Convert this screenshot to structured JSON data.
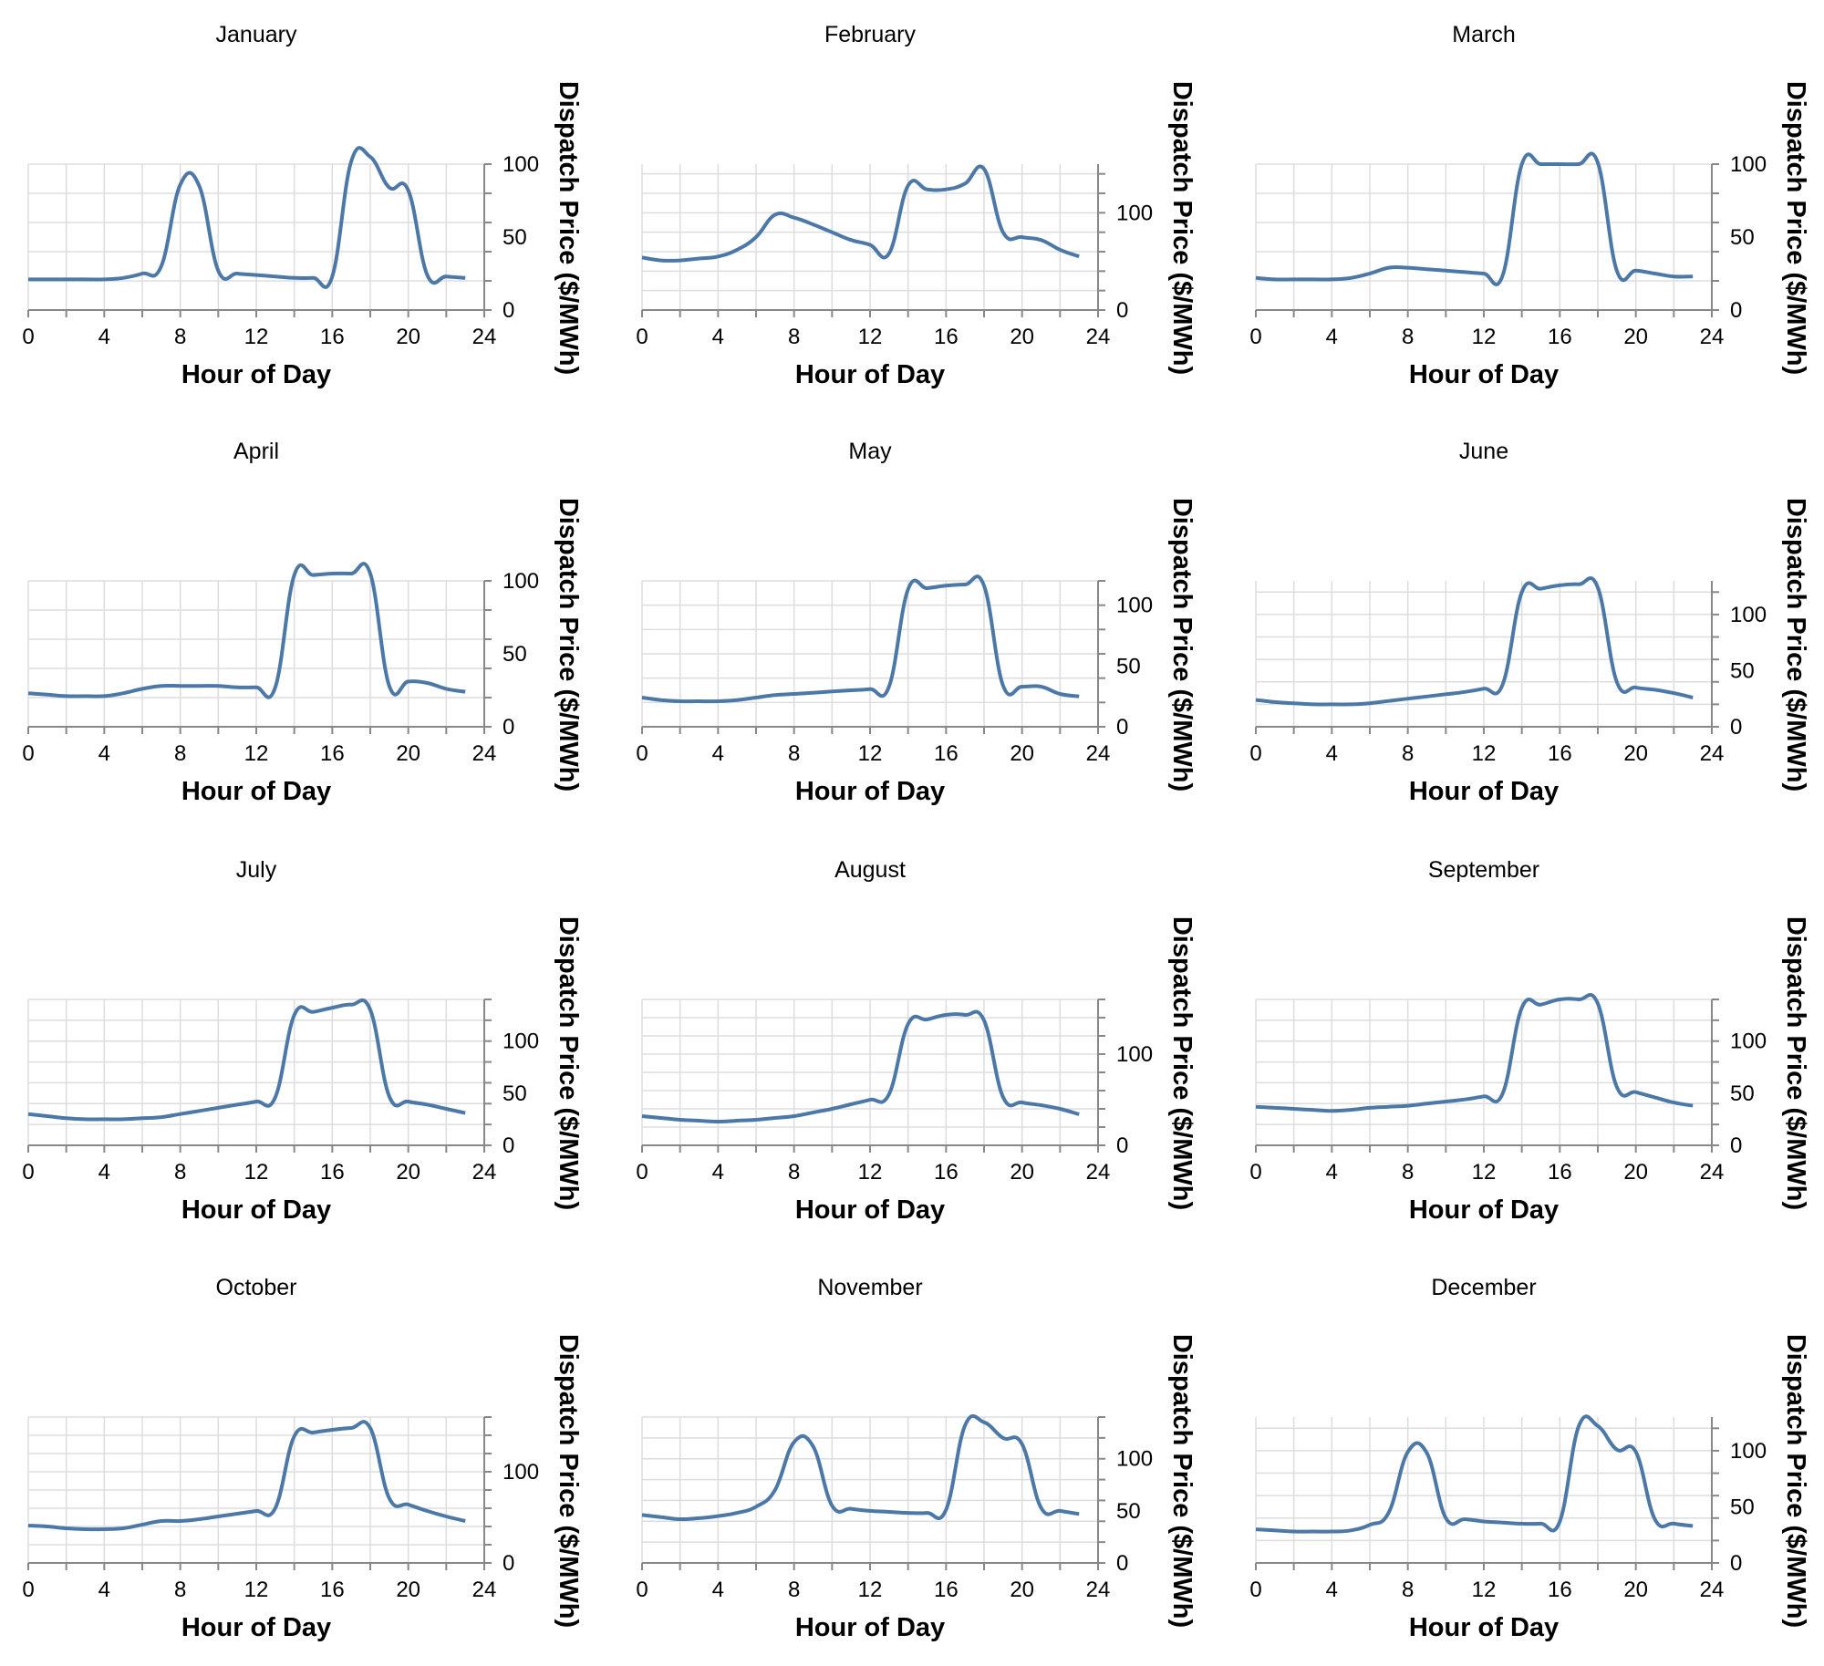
{
  "chart_data": [
    {
      "type": "line",
      "title": "January",
      "xlabel": "Hour of Day",
      "ylabel": "Dispatch Price ($/MWh)",
      "xlim": [
        0,
        24
      ],
      "ylim": [
        0,
        100
      ],
      "y_axis_max": 100,
      "x_ticks": [
        0,
        4,
        8,
        12,
        16,
        20,
        24
      ],
      "y_ticks": [
        0,
        50,
        100
      ],
      "y_axis_position": "right",
      "grid": true,
      "x": [
        0,
        1,
        2,
        3,
        4,
        5,
        6,
        7,
        8,
        9,
        10,
        11,
        12,
        13,
        14,
        15,
        16,
        17,
        18,
        19,
        20,
        21,
        22,
        23
      ],
      "values": [
        21,
        21,
        21,
        21,
        21,
        22,
        25,
        30,
        86,
        85,
        27,
        25,
        24,
        23,
        22,
        22,
        23,
        102,
        105,
        84,
        82,
        24,
        23,
        22
      ]
    },
    {
      "type": "line",
      "title": "February",
      "xlabel": "Hour of Day",
      "ylabel": "Dispatch Price ($/MWh)",
      "xlim": [
        0,
        24
      ],
      "ylim": [
        0,
        150
      ],
      "y_axis_max": 150,
      "x_ticks": [
        0,
        4,
        8,
        12,
        16,
        20,
        24
      ],
      "y_ticks": [
        0,
        100
      ],
      "y_axis_position": "right",
      "grid": true,
      "x": [
        0,
        1,
        2,
        3,
        4,
        5,
        6,
        7,
        8,
        9,
        10,
        11,
        12,
        13,
        14,
        15,
        16,
        17,
        18,
        19,
        20,
        21,
        22,
        23
      ],
      "values": [
        54,
        51,
        51,
        53,
        55,
        62,
        75,
        98,
        95,
        88,
        80,
        72,
        67,
        58,
        128,
        124,
        124,
        130,
        145,
        80,
        75,
        72,
        62,
        55
      ]
    },
    {
      "type": "line",
      "title": "March",
      "xlabel": "Hour of Day",
      "ylabel": "Dispatch Price ($/MWh)",
      "xlim": [
        0,
        24
      ],
      "ylim": [
        0,
        100
      ],
      "y_axis_max": 100,
      "x_ticks": [
        0,
        4,
        8,
        12,
        16,
        20,
        24
      ],
      "y_ticks": [
        0,
        50,
        100
      ],
      "y_axis_position": "right",
      "grid": true,
      "x": [
        0,
        1,
        2,
        3,
        4,
        5,
        6,
        7,
        8,
        9,
        10,
        11,
        12,
        13,
        14,
        15,
        16,
        17,
        18,
        19,
        20,
        21,
        22,
        23
      ],
      "values": [
        22,
        21,
        21,
        21,
        21,
        22,
        25,
        29,
        29,
        28,
        27,
        26,
        25,
        24,
        100,
        100,
        100,
        100,
        101,
        27,
        27,
        25,
        23,
        23
      ]
    },
    {
      "type": "line",
      "title": "April",
      "xlabel": "Hour of Day",
      "ylabel": "Dispatch Price ($/MWh)",
      "xlim": [
        0,
        24
      ],
      "ylim": [
        0,
        100
      ],
      "y_axis_max": 100,
      "x_ticks": [
        0,
        4,
        8,
        12,
        16,
        20,
        24
      ],
      "y_ticks": [
        0,
        50,
        100
      ],
      "y_axis_position": "right",
      "grid": true,
      "x": [
        0,
        1,
        2,
        3,
        4,
        5,
        6,
        7,
        8,
        9,
        10,
        11,
        12,
        13,
        14,
        15,
        16,
        17,
        18,
        19,
        20,
        21,
        22,
        23
      ],
      "values": [
        23,
        22,
        21,
        21,
        21,
        23,
        26,
        28,
        28,
        28,
        28,
        27,
        27,
        27,
        104,
        104,
        105,
        105,
        105,
        28,
        31,
        30,
        26,
        24
      ]
    },
    {
      "type": "line",
      "title": "May",
      "xlabel": "Hour of Day",
      "ylabel": "Dispatch Price ($/MWh)",
      "xlim": [
        0,
        24
      ],
      "ylim": [
        0,
        120
      ],
      "y_axis_max": 120,
      "x_ticks": [
        0,
        4,
        8,
        12,
        16,
        20,
        24
      ],
      "y_ticks": [
        0,
        50,
        100
      ],
      "y_axis_position": "right",
      "grid": true,
      "x": [
        0,
        1,
        2,
        3,
        4,
        5,
        6,
        7,
        8,
        9,
        10,
        11,
        12,
        13,
        14,
        15,
        16,
        17,
        18,
        19,
        20,
        21,
        22,
        23
      ],
      "values": [
        24,
        22,
        21,
        21,
        21,
        22,
        24,
        26,
        27,
        28,
        29,
        30,
        31,
        33,
        113,
        114,
        116,
        117,
        116,
        34,
        33,
        33,
        27,
        25
      ]
    },
    {
      "type": "line",
      "title": "June",
      "xlabel": "Hour of Day",
      "ylabel": "Dispatch Price ($/MWh)",
      "xlim": [
        0,
        24
      ],
      "ylim": [
        0,
        130
      ],
      "y_axis_max": 130,
      "x_ticks": [
        0,
        4,
        8,
        12,
        16,
        20,
        24
      ],
      "y_ticks": [
        0,
        50,
        100
      ],
      "y_axis_position": "right",
      "grid": true,
      "x": [
        0,
        1,
        2,
        3,
        4,
        5,
        6,
        7,
        8,
        9,
        10,
        11,
        12,
        13,
        14,
        15,
        16,
        17,
        18,
        19,
        20,
        21,
        22,
        23
      ],
      "values": [
        24,
        22,
        21,
        20,
        20,
        20,
        21,
        23,
        25,
        27,
        29,
        31,
        34,
        38,
        120,
        123,
        126,
        127,
        124,
        40,
        35,
        33,
        30,
        26
      ]
    },
    {
      "type": "line",
      "title": "July",
      "xlabel": "Hour of Day",
      "ylabel": "Dispatch Price ($/MWh)",
      "xlim": [
        0,
        24
      ],
      "ylim": [
        0,
        140
      ],
      "y_axis_max": 140,
      "x_ticks": [
        0,
        4,
        8,
        12,
        16,
        20,
        24
      ],
      "y_ticks": [
        0,
        50,
        100
      ],
      "y_axis_position": "right",
      "grid": true,
      "x": [
        0,
        1,
        2,
        3,
        4,
        5,
        6,
        7,
        8,
        9,
        10,
        11,
        12,
        13,
        14,
        15,
        16,
        17,
        18,
        19,
        20,
        21,
        22,
        23
      ],
      "values": [
        30,
        28,
        26,
        25,
        25,
        25,
        26,
        27,
        30,
        33,
        36,
        39,
        42,
        46,
        125,
        128,
        132,
        135,
        130,
        47,
        42,
        39,
        35,
        31
      ]
    },
    {
      "type": "line",
      "title": "August",
      "xlabel": "Hour of Day",
      "ylabel": "Dispatch Price ($/MWh)",
      "xlim": [
        0,
        24
      ],
      "ylim": [
        0,
        160
      ],
      "y_axis_max": 160,
      "x_ticks": [
        0,
        4,
        8,
        12,
        16,
        20,
        24
      ],
      "y_ticks": [
        0,
        100
      ],
      "y_axis_position": "right",
      "grid": true,
      "x": [
        0,
        1,
        2,
        3,
        4,
        5,
        6,
        7,
        8,
        9,
        10,
        11,
        12,
        13,
        14,
        15,
        16,
        17,
        18,
        19,
        20,
        21,
        22,
        23
      ],
      "values": [
        32,
        30,
        28,
        27,
        26,
        27,
        28,
        30,
        32,
        36,
        40,
        45,
        50,
        56,
        133,
        138,
        143,
        143,
        137,
        53,
        47,
        44,
        40,
        34
      ]
    },
    {
      "type": "line",
      "title": "September",
      "xlabel": "Hour of Day",
      "ylabel": "Dispatch Price ($/MWh)",
      "xlim": [
        0,
        24
      ],
      "ylim": [
        0,
        140
      ],
      "y_axis_max": 140,
      "x_ticks": [
        0,
        4,
        8,
        12,
        16,
        20,
        24
      ],
      "y_ticks": [
        0,
        50,
        100
      ],
      "y_axis_position": "right",
      "grid": true,
      "x": [
        0,
        1,
        2,
        3,
        4,
        5,
        6,
        7,
        8,
        9,
        10,
        11,
        12,
        13,
        14,
        15,
        16,
        17,
        18,
        19,
        20,
        21,
        22,
        23
      ],
      "values": [
        37,
        36,
        35,
        34,
        33,
        34,
        36,
        37,
        38,
        40,
        42,
        44,
        47,
        50,
        132,
        135,
        140,
        140,
        136,
        56,
        51,
        46,
        41,
        38
      ]
    },
    {
      "type": "line",
      "title": "October",
      "xlabel": "Hour of Day",
      "ylabel": "Dispatch Price ($/MWh)",
      "xlim": [
        0,
        24
      ],
      "ylim": [
        0,
        160
      ],
      "y_axis_max": 160,
      "x_ticks": [
        0,
        4,
        8,
        12,
        16,
        20,
        24
      ],
      "y_ticks": [
        0,
        100
      ],
      "y_axis_position": "right",
      "grid": true,
      "x": [
        0,
        1,
        2,
        3,
        4,
        5,
        6,
        7,
        8,
        9,
        10,
        11,
        12,
        13,
        14,
        15,
        16,
        17,
        18,
        19,
        20,
        21,
        22,
        23
      ],
      "values": [
        41,
        40,
        38,
        37,
        37,
        38,
        42,
        46,
        46,
        48,
        51,
        54,
        57,
        60,
        139,
        143,
        146,
        148,
        148,
        71,
        64,
        57,
        51,
        46
      ]
    },
    {
      "type": "line",
      "title": "November",
      "xlabel": "Hour of Day",
      "ylabel": "Dispatch Price ($/MWh)",
      "xlim": [
        0,
        24
      ],
      "ylim": [
        0,
        140
      ],
      "y_axis_max": 140,
      "x_ticks": [
        0,
        4,
        8,
        12,
        16,
        20,
        24
      ],
      "y_ticks": [
        0,
        50,
        100
      ],
      "y_axis_position": "right",
      "grid": true,
      "x": [
        0,
        1,
        2,
        3,
        4,
        5,
        6,
        7,
        8,
        9,
        10,
        11,
        12,
        13,
        14,
        15,
        16,
        17,
        18,
        19,
        20,
        21,
        22,
        23
      ],
      "values": [
        46,
        44,
        42,
        43,
        45,
        48,
        54,
        70,
        116,
        112,
        55,
        52,
        50,
        49,
        48,
        48,
        51,
        132,
        135,
        120,
        114,
        53,
        50,
        47
      ]
    },
    {
      "type": "line",
      "title": "December",
      "xlabel": "Hour of Day",
      "ylabel": "Dispatch Price ($/MWh)",
      "xlim": [
        0,
        24
      ],
      "ylim": [
        0,
        130
      ],
      "y_axis_max": 130,
      "x_ticks": [
        0,
        4,
        8,
        12,
        16,
        20,
        24
      ],
      "y_ticks": [
        0,
        50,
        100
      ],
      "y_axis_position": "right",
      "grid": true,
      "x": [
        0,
        1,
        2,
        3,
        4,
        5,
        6,
        7,
        8,
        9,
        10,
        11,
        12,
        13,
        14,
        15,
        16,
        17,
        18,
        19,
        20,
        21,
        22,
        23
      ],
      "values": [
        30,
        29,
        28,
        28,
        28,
        29,
        34,
        45,
        99,
        98,
        40,
        39,
        37,
        36,
        35,
        35,
        37,
        122,
        122,
        101,
        99,
        39,
        35,
        33
      ]
    }
  ],
  "colors": {
    "line": "#4C78A8",
    "grid": "#DDDDDD",
    "axis": "#888888",
    "text": "#000000",
    "background": "#FFFFFF"
  }
}
